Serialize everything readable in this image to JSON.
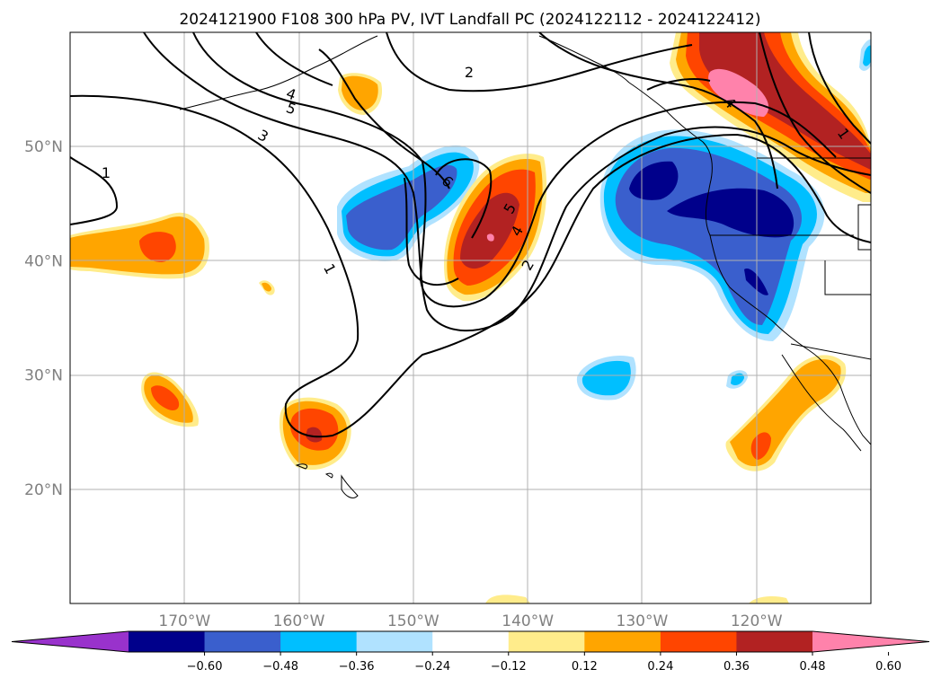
{
  "title": "2024121900 F108 300 hPa PV, IVT Landfall PC (2024122112 - 2024122412)",
  "map": {
    "lon_range": [
      -180,
      -110
    ],
    "lat_range": [
      10,
      60
    ],
    "lat_ticks": [
      {
        "value": 50,
        "label": "50°N"
      },
      {
        "value": 40,
        "label": "40°N"
      },
      {
        "value": 30,
        "label": "30°N"
      },
      {
        "value": 20,
        "label": "20°N"
      }
    ],
    "lon_ticks": [
      {
        "value": -170,
        "label": "170°W"
      },
      {
        "value": -160,
        "label": "160°W"
      },
      {
        "value": -150,
        "label": "150°W"
      },
      {
        "value": -140,
        "label": "140°W"
      },
      {
        "value": -130,
        "label": "130°W"
      },
      {
        "value": -120,
        "label": "120°W"
      }
    ],
    "grid": true,
    "pv_contour_labels": [
      "1",
      "1",
      "2",
      "2",
      "3",
      "4",
      "4",
      "5",
      "5",
      "6",
      "1",
      "4"
    ]
  },
  "colorbar": {
    "labels": [
      "−0.60",
      "−0.48",
      "−0.36",
      "−0.24",
      "−0.12",
      "0.12",
      "0.24",
      "0.36",
      "0.48",
      "0.60"
    ],
    "colors": [
      "#9932cc",
      "#00008b",
      "#3a5fcd",
      "#00bfff",
      "#b0e2ff",
      "#ffffff",
      "#ffec8b",
      "#ffa500",
      "#ff4500",
      "#b22222",
      "#ff82ab"
    ],
    "extend": "both"
  }
}
